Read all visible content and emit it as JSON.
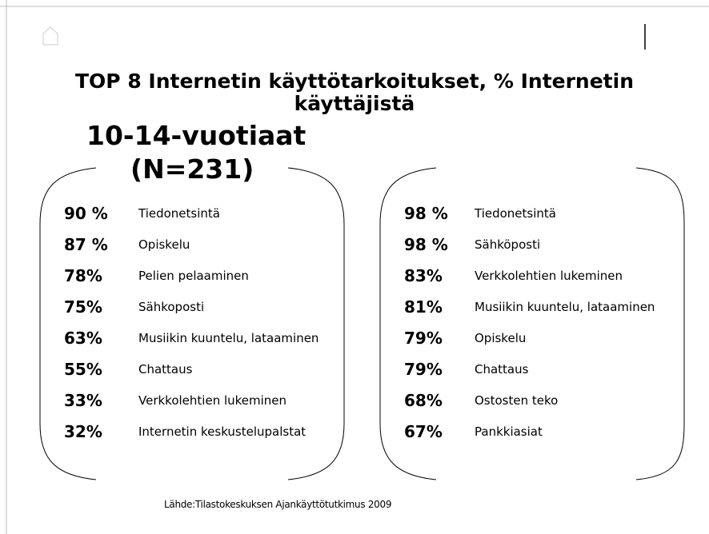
{
  "header": {
    "title_line1": "TOP 8 Internetin käyttötarkoitukset, % Internetin",
    "title_line2": "käyttäjistä",
    "group": "10-14-vuotiaat",
    "sample": "(N=231)"
  },
  "left_list": [
    {
      "percent": "90 %",
      "label": "Tiedonetsintä"
    },
    {
      "percent": "87 %",
      "label": "Opiskelu"
    },
    {
      "percent": "78%",
      "label": "Pelien pelaaminen"
    },
    {
      "percent": "75%",
      "label": "Sähkoposti"
    },
    {
      "percent": "63%",
      "label": "Musiikin kuuntelu, lataaminen"
    },
    {
      "percent": "55%",
      "label": "Chattaus"
    },
    {
      "percent": "33%",
      "label": "Verkkolehtien lukeminen"
    },
    {
      "percent": "32%",
      "label": "Internetin keskustelupalstat"
    }
  ],
  "right_list": [
    {
      "percent": "98 %",
      "label": "Tiedonetsintä"
    },
    {
      "percent": "98 %",
      "label": "Sähköposti"
    },
    {
      "percent": "83%",
      "label": "Verkkolehtien lukeminen"
    },
    {
      "percent": "81%",
      "label": "Musiikin kuuntelu, lataaminen"
    },
    {
      "percent": "79%",
      "label": "Opiskelu"
    },
    {
      "percent": "79%",
      "label": "Chattaus"
    },
    {
      "percent": "68%",
      "label": "Ostosten teko"
    },
    {
      "percent": "67%",
      "label": "Pankkiasiat"
    }
  ],
  "source": "Lähde:Tilastokeskuksen Ajankäyttötutkimus 2009"
}
